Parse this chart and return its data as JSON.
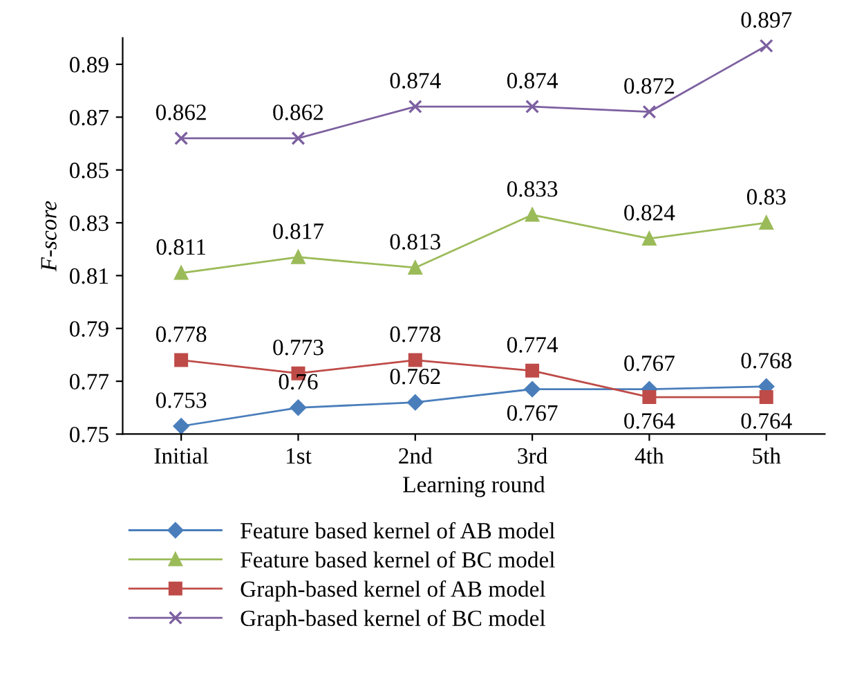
{
  "chart_data": {
    "type": "line",
    "xlabel": "Learning round",
    "ylabel": "F-score",
    "categories": [
      "Initial",
      "1st",
      "2nd",
      "3rd",
      "4th",
      "5th"
    ],
    "series": [
      {
        "name": "Feature based kernel of AB model",
        "color": "#4a7ebb",
        "marker": "diamond",
        "values": [
          0.753,
          0.76,
          0.762,
          0.767,
          0.767,
          0.768
        ]
      },
      {
        "name": "Feature based kernel of BC model",
        "color": "#9bbb59",
        "marker": "triangle",
        "values": [
          0.811,
          0.817,
          0.813,
          0.833,
          0.824,
          0.83
        ]
      },
      {
        "name": "Graph-based kernel of AB model",
        "color": "#be4b48",
        "marker": "square",
        "values": [
          0.778,
          0.773,
          0.778,
          0.774,
          0.764,
          0.764
        ]
      },
      {
        "name": "Graph-based kernel of BC model",
        "color": "#7d60a0",
        "marker": "cross",
        "values": [
          0.862,
          0.862,
          0.874,
          0.874,
          0.872,
          0.897
        ]
      }
    ],
    "ylim": [
      0.75,
      0.9
    ],
    "yticks": [
      0.75,
      0.77,
      0.79,
      0.81,
      0.83,
      0.85,
      0.87,
      0.89
    ],
    "data_labels": true,
    "grid": false,
    "legend": "bottom"
  }
}
